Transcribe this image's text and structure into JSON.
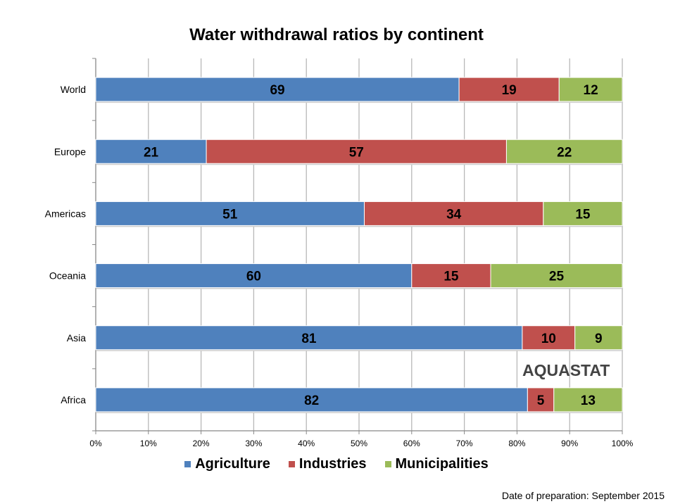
{
  "chart_data": {
    "type": "bar",
    "orientation": "horizontal",
    "stacked": true,
    "title": "Water withdrawal ratios by continent",
    "categories": [
      "World",
      "Europe",
      "Americas",
      "Oceania",
      "Asia",
      "Africa"
    ],
    "series": [
      {
        "name": "Agriculture",
        "color": "#4F81BD",
        "values": [
          69,
          21,
          51,
          60,
          81,
          82
        ]
      },
      {
        "name": "Industries",
        "color": "#C0504D",
        "values": [
          19,
          57,
          34,
          15,
          10,
          5
        ]
      },
      {
        "name": "Municipalities",
        "color": "#9BBB59",
        "values": [
          12,
          22,
          15,
          25,
          9,
          13
        ]
      }
    ],
    "xlim": [
      0,
      100
    ],
    "xticks": [
      "0%",
      "10%",
      "20%",
      "30%",
      "40%",
      "50%",
      "60%",
      "70%",
      "80%",
      "90%",
      "100%"
    ],
    "grid": true,
    "legend_position": "bottom",
    "data_labels": true
  },
  "watermark": "AQUASTAT",
  "footer": "Date of preparation: September 2015"
}
